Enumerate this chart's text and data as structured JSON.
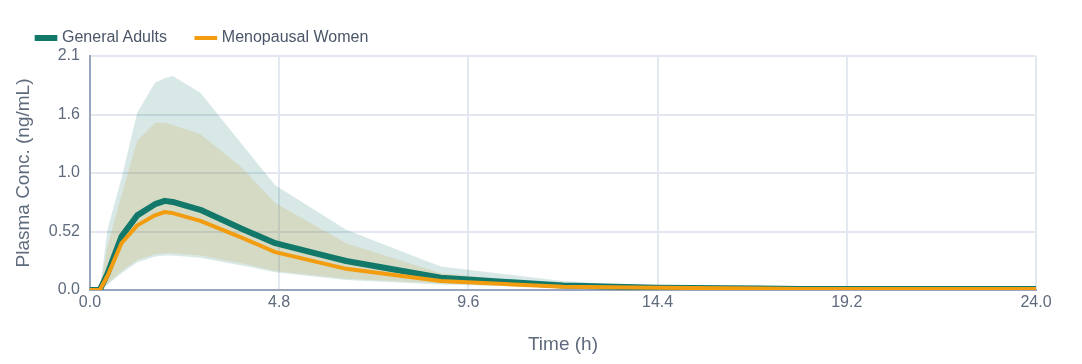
{
  "chart_data": {
    "type": "line",
    "xlabel": "Time (h)",
    "ylabel": "Plasma Conc. (ng/mL)",
    "x": [
      0,
      0.25,
      0.45,
      0.8,
      1.2,
      1.65,
      1.9,
      2.1,
      2.8,
      3.85,
      4.7,
      6.5,
      8.9,
      12,
      14.4,
      18,
      24
    ],
    "series": [
      {
        "name": "General Adults",
        "color": "#11786a",
        "values": [
          0,
          0,
          0.15,
          0.48,
          0.67,
          0.77,
          0.8,
          0.79,
          0.72,
          0.55,
          0.42,
          0.26,
          0.11,
          0.04,
          0.02,
          0.01,
          0.01
        ],
        "lower": [
          0,
          0,
          0.05,
          0.15,
          0.25,
          0.3,
          0.31,
          0.31,
          0.29,
          0.22,
          0.16,
          0.09,
          0.05,
          0.02,
          0.01,
          0,
          0
        ],
        "upper": [
          0,
          0,
          0.55,
          1.0,
          1.59,
          1.86,
          1.9,
          1.92,
          1.77,
          1.31,
          0.94,
          0.54,
          0.21,
          0.08,
          0.03,
          0.01,
          0.01
        ]
      },
      {
        "name": "Menopausal Women",
        "color": "#f29d0f",
        "values": [
          0,
          0,
          0.13,
          0.42,
          0.58,
          0.67,
          0.7,
          0.69,
          0.62,
          0.47,
          0.34,
          0.19,
          0.08,
          0.03,
          0.02,
          0.01,
          0.01
        ],
        "lower": [
          0,
          0,
          0.06,
          0.17,
          0.27,
          0.32,
          0.33,
          0.33,
          0.31,
          0.24,
          0.17,
          0.1,
          0.06,
          0.02,
          0.01,
          0.01,
          0
        ],
        "upper": [
          0,
          0,
          0.4,
          0.85,
          1.34,
          1.5,
          1.5,
          1.48,
          1.4,
          1.1,
          0.78,
          0.42,
          0.15,
          0.05,
          0.02,
          0.01,
          0.01
        ]
      }
    ],
    "xlim": [
      0,
      24
    ],
    "xticks": [
      {
        "value": 0,
        "label": "0.0"
      },
      4.8,
      9.6,
      14.4,
      19.2,
      {
        "value": 24,
        "label": "24.0"
      }
    ],
    "ylim": [
      0,
      2.1
    ],
    "yticks": [
      {
        "value": 0,
        "label": "0.0"
      },
      {
        "value": 0.525,
        "label": "0.52"
      },
      {
        "value": 1.05,
        "label": "1.0"
      },
      {
        "value": 1.575,
        "label": "1.6"
      },
      2.1
    ],
    "grid": true,
    "legend": "top left",
    "marker": "none",
    "line_style": "solid"
  }
}
